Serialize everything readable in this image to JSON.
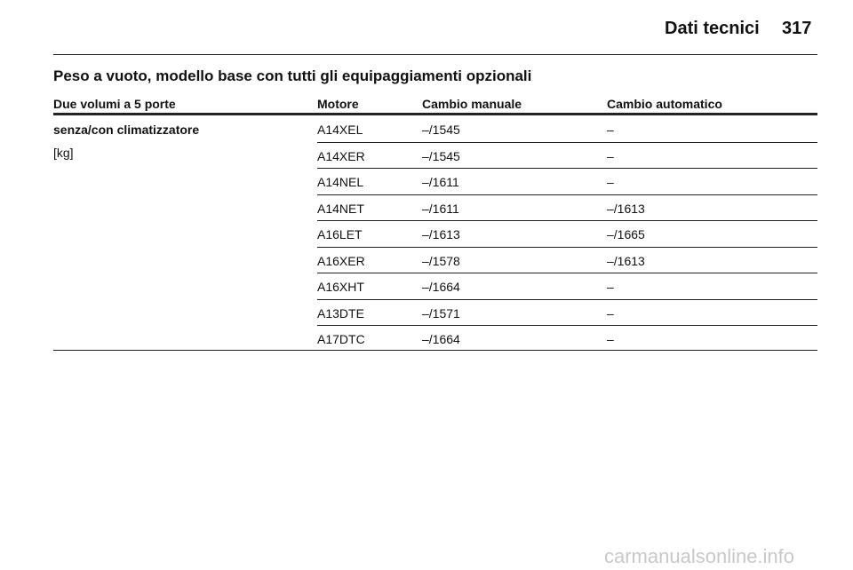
{
  "header": {
    "section": "Dati tecnici",
    "page": "317"
  },
  "title": "Peso a vuoto, modello base con tutti gli equipaggiamenti opzionali",
  "table": {
    "columns": [
      "Due volumi a 5 porte",
      "Motore",
      "Cambio manuale",
      "Cambio automatico"
    ],
    "row_label": "senza/con climatizzatore",
    "row_unit": "[kg]",
    "rows": [
      [
        "A14XEL",
        "–/1545",
        "–"
      ],
      [
        "A14XER",
        "–/1545",
        "–"
      ],
      [
        "A14NEL",
        "–/1611",
        "–"
      ],
      [
        "A14NET",
        "–/1611",
        "–/1613"
      ],
      [
        "A16LET",
        "–/1613",
        "–/1665"
      ],
      [
        "A16XER",
        "–/1578",
        "–/1613"
      ],
      [
        "A16XHT",
        "–/1664",
        "–"
      ],
      [
        "A13DTE",
        "–/1571",
        "–"
      ],
      [
        "A17DTC",
        "–/1664",
        "–"
      ]
    ]
  },
  "watermark": "carmanualsonline.info"
}
